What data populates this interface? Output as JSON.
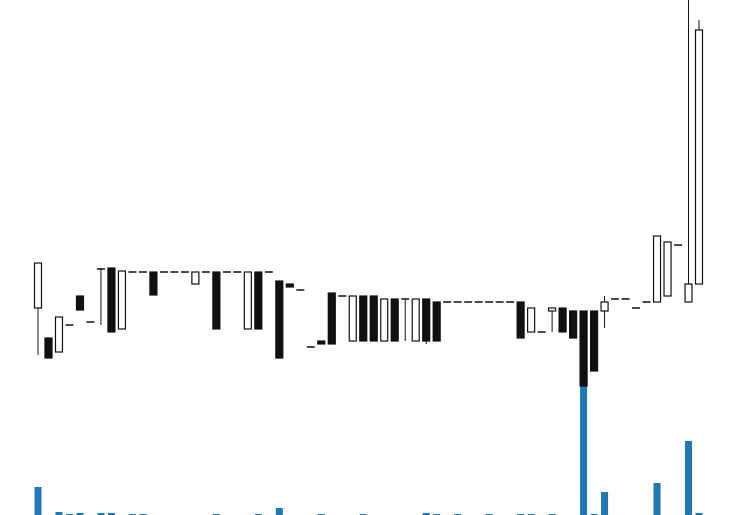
{
  "chart_data": {
    "type": "candlestick",
    "open": [
      207,
      177,
      163,
      190,
      219,
      193,
      246,
      247,
      186,
      243,
      243,
      243,
      243,
      243,
      243,
      231,
      243,
      243,
      243,
      243,
      186,
      243,
      243,
      234,
      231,
      225,
      168,
      174,
      222,
      219,
      174,
      219,
      219,
      174,
      216,
      216,
      174,
      216,
      213,
      213,
      213,
      213,
      213,
      213,
      213,
      213,
      213,
      183,
      183,
      204,
      207,
      204,
      204,
      204,
      204,
      216,
      216,
      207,
      213,
      213,
      219,
      270,
      213,
      231
    ],
    "high": [
      252,
      177,
      198,
      190,
      219,
      193,
      247,
      247,
      244,
      243,
      243,
      243,
      243,
      243,
      243,
      243,
      243,
      243,
      243,
      243,
      243,
      243,
      243,
      234,
      231,
      225,
      168,
      174,
      222,
      219,
      219,
      219,
      219,
      216,
      216,
      216,
      216,
      216,
      213,
      213,
      213,
      213,
      213,
      213,
      213,
      213,
      213,
      207,
      183,
      207,
      207,
      204,
      204,
      204,
      219,
      216,
      216,
      207,
      213,
      279,
      273,
      270,
      515,
      495
    ],
    "low": [
      160,
      157,
      163,
      190,
      205,
      193,
      190,
      183,
      186,
      243,
      243,
      220,
      243,
      243,
      243,
      231,
      243,
      186,
      243,
      243,
      186,
      186,
      243,
      157,
      228,
      225,
      168,
      171,
      171,
      219,
      174,
      174,
      174,
      174,
      174,
      174,
      174,
      171,
      174,
      213,
      213,
      213,
      213,
      213,
      213,
      213,
      177,
      183,
      183,
      183,
      183,
      177,
      129,
      144,
      187,
      216,
      216,
      207,
      213,
      213,
      219,
      270,
      213,
      231
    ],
    "close": [
      252,
      157,
      198,
      190,
      205,
      193,
      246,
      183,
      244,
      243,
      243,
      220,
      243,
      243,
      243,
      243,
      243,
      186,
      243,
      243,
      243,
      186,
      243,
      157,
      228,
      225,
      168,
      171,
      171,
      219,
      219,
      174,
      174,
      216,
      174,
      216,
      216,
      174,
      174,
      213,
      213,
      213,
      213,
      213,
      213,
      213,
      177,
      207,
      183,
      207,
      183,
      177,
      129,
      144,
      213,
      216,
      216,
      207,
      213,
      279,
      273,
      270,
      231,
      485
    ],
    "volume": [
      28,
      0,
      3,
      1,
      2,
      0,
      2,
      2,
      0,
      1,
      1,
      0,
      0,
      0,
      0,
      0,
      0,
      1,
      0,
      0,
      0,
      1,
      0,
      7,
      0,
      0,
      0,
      1,
      0,
      0,
      0,
      1,
      0,
      0,
      0,
      0,
      0,
      2,
      1,
      0,
      1,
      0,
      0,
      1,
      0,
      0,
      1,
      1,
      0,
      1,
      0,
      0,
      129,
      1,
      23,
      0,
      0,
      0,
      0,
      32,
      0,
      0,
      74,
      2
    ],
    "ylim": [
      0,
      515
    ],
    "volume_ylim": [
      0,
      515
    ],
    "up_color": "#ffffff",
    "down_color": "#111111",
    "edge_color": "#111111",
    "volume_color": "#1f77b4"
  }
}
